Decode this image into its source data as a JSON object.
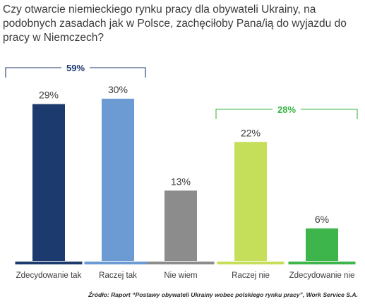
{
  "title": "Czy otwarcie niemieckiego rynku pracy dla obywateli Ukrainy, na podobnych zasadach jak w Polsce, zachęciłoby Pana/ią do wyjazdu do pracy w Niemczech?",
  "source": "Źródło: Raport “Postawy obywateli Ukrainy wobec polskiego rynku pracy”, Work Service S.A.",
  "chart_data": {
    "type": "bar",
    "title": "Czy otwarcie niemieckiego rynku pracy dla obywateli Ukrainy, na podobnych zasadach jak w Polsce, zachęciłoby Pana/ią do wyjazdu do pracy w Niemczech?",
    "categories": [
      "Zdecydowanie tak",
      "Raczej tak",
      "Nie wiem",
      "Raczej nie",
      "Zdecydowanie nie"
    ],
    "values": [
      29,
      30,
      13,
      22,
      6
    ],
    "value_labels": [
      "29%",
      "30%",
      "13%",
      "22%",
      "6%"
    ],
    "colors": [
      "#1d3a6e",
      "#6b9bd2",
      "#8c8c8c",
      "#c5df5a",
      "#3db54a"
    ],
    "ylim": [
      0,
      30
    ],
    "xlabel": "",
    "ylabel": "",
    "grid": false,
    "brackets": [
      {
        "label": "59%",
        "from": 0,
        "to": 1,
        "color": "#1d3a6e"
      },
      {
        "label": "28%",
        "from": 3,
        "to": 4,
        "color": "#3db54a"
      }
    ]
  }
}
